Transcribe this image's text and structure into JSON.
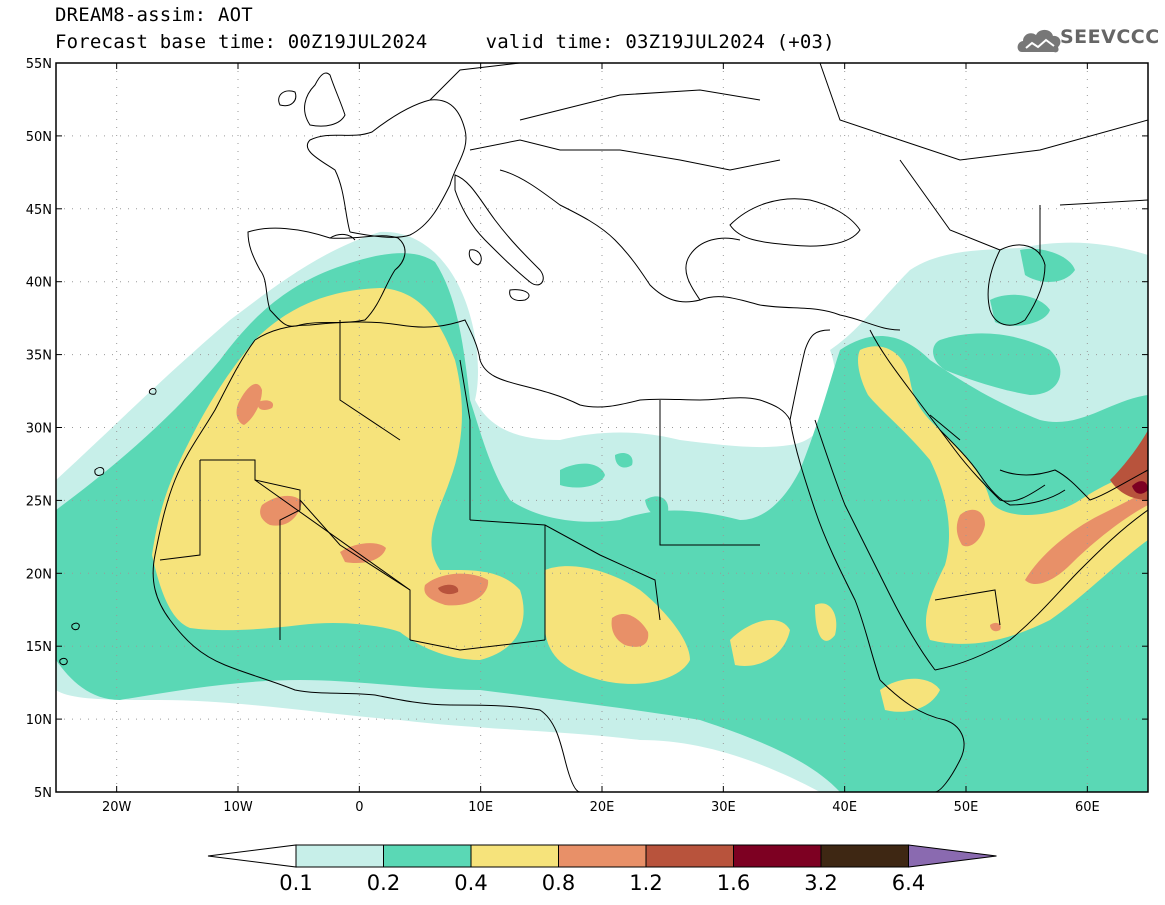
{
  "header": {
    "product_title": "DREAM8-assim: AOT",
    "base_time_label": "Forecast base time: 00Z19JUL2024",
    "valid_time_label": "valid time: 03Z19JUL2024 (+03)"
  },
  "logo": {
    "text": "SEEVCCC",
    "icon": "cloud-icon"
  },
  "map": {
    "lat_labels": [
      "55N",
      "50N",
      "45N",
      "40N",
      "35N",
      "30N",
      "25N",
      "20N",
      "15N",
      "10N",
      "5N"
    ],
    "lat_values": [
      55,
      50,
      45,
      40,
      35,
      30,
      25,
      20,
      15,
      10,
      5
    ],
    "lon_labels": [
      "20W",
      "10W",
      "0",
      "10E",
      "20E",
      "30E",
      "40E",
      "50E",
      "60E"
    ],
    "lon_values": [
      -20,
      -10,
      0,
      10,
      20,
      30,
      40,
      50,
      60
    ],
    "lon_range": [
      -25,
      65
    ],
    "lat_range": [
      5,
      55
    ],
    "gridlines": true
  },
  "colorbar": {
    "boundaries": [
      "0.1",
      "0.2",
      "0.4",
      "0.8",
      "1.2",
      "1.6",
      "3.2",
      "6.4"
    ],
    "colors": {
      "below": "#ffffff",
      "bins": [
        "#c7efe9",
        "#5ad8b5",
        "#f6e37b",
        "#e89068",
        "#b8533c",
        "#7d0022",
        "#3e2713"
      ],
      "above": "#8a6ab0"
    }
  },
  "aot_colors": {
    "c01": "#c7efe9",
    "c02": "#5ad8b5",
    "c04": "#f6e37b",
    "c08": "#e89068",
    "c12": "#b8533c",
    "c16": "#7d0022"
  }
}
